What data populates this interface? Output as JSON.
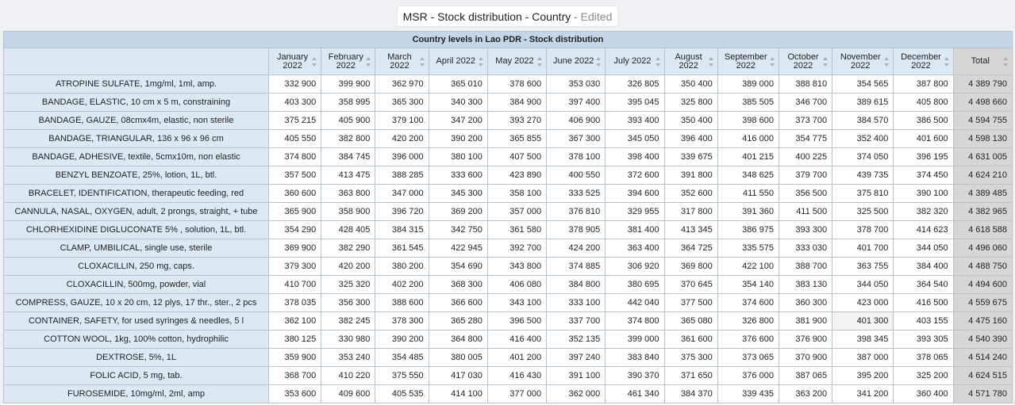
{
  "title": {
    "main": "MSR - Stock distribution - Country",
    "suffix": " - Edited"
  },
  "table": {
    "caption": "Country levels in Lao PDR - Stock distribution",
    "headers": [
      {
        "l1": "January",
        "l2": "2022"
      },
      {
        "l1": "February",
        "l2": "2022"
      },
      {
        "l1": "March",
        "l2": "2022"
      },
      {
        "l1": "April 2022",
        "l2": ""
      },
      {
        "l1": "May 2022",
        "l2": ""
      },
      {
        "l1": "June 2022",
        "l2": ""
      },
      {
        "l1": "July 2022",
        "l2": ""
      },
      {
        "l1": "August",
        "l2": "2022"
      },
      {
        "l1": "September",
        "l2": "2022"
      },
      {
        "l1": "October",
        "l2": "2022"
      },
      {
        "l1": "November",
        "l2": "2022"
      },
      {
        "l1": "December",
        "l2": "2022"
      },
      {
        "l1": "Total",
        "l2": ""
      }
    ],
    "rows": [
      {
        "label": "ATROPINE SULFATE, 1mg/ml, 1ml, amp.",
        "values": [
          "332 900",
          "399 900",
          "362 970",
          "365 010",
          "378 600",
          "353 030",
          "326 805",
          "350 400",
          "389 000",
          "388 810",
          "354 565",
          "387 800"
        ],
        "total": "4 389 790"
      },
      {
        "label": "BANDAGE, ELASTIC, 10 cm x 5 m, constraining",
        "values": [
          "403 300",
          "358 995",
          "365 300",
          "340 300",
          "384 900",
          "397 400",
          "395 045",
          "325 800",
          "385 505",
          "346 700",
          "389 615",
          "405 800"
        ],
        "total": "4 498 660"
      },
      {
        "label": "BANDAGE, GAUZE, 08cmx4m, elastic, non sterile",
        "values": [
          "375 215",
          "405 900",
          "379 100",
          "347 200",
          "393 270",
          "406 900",
          "393 400",
          "350 400",
          "398 600",
          "373 700",
          "384 570",
          "386 500"
        ],
        "total": "4 594 755"
      },
      {
        "label": "BANDAGE, TRIANGULAR, 136 x 96 x 96 cm",
        "values": [
          "405 550",
          "382 800",
          "420 200",
          "390 200",
          "365 855",
          "367 300",
          "345 050",
          "396 400",
          "416 000",
          "354 775",
          "352 400",
          "401 600"
        ],
        "total": "4 598 130"
      },
      {
        "label": "BANDAGE, ADHESIVE, textile, 5cmx10m, non elastic",
        "values": [
          "374 800",
          "384 745",
          "396 000",
          "380 100",
          "407 500",
          "378 100",
          "398 400",
          "339 675",
          "401 215",
          "400 225",
          "374 050",
          "396 195"
        ],
        "total": "4 631 005"
      },
      {
        "label": "BENZYL BENZOATE, 25%, lotion, 1L, btl.",
        "values": [
          "357 500",
          "413 475",
          "388 285",
          "333 600",
          "423 890",
          "400 550",
          "372 600",
          "391 800",
          "348 625",
          "379 700",
          "439 735",
          "374 450"
        ],
        "total": "4 624 210"
      },
      {
        "label": "BRACELET, IDENTIFICATION, therapeutic feeding, red",
        "values": [
          "360 600",
          "363 800",
          "347 000",
          "345 300",
          "358 100",
          "333 525",
          "394 600",
          "352 600",
          "411 550",
          "356 500",
          "375 810",
          "390 100"
        ],
        "total": "4 389 485"
      },
      {
        "label": "CANNULA, NASAL, OXYGEN, adult, 2 prongs, straight, + tube",
        "values": [
          "365 900",
          "358 900",
          "396 720",
          "369 200",
          "357 000",
          "376 810",
          "329 955",
          "317 800",
          "391 360",
          "411 500",
          "325 500",
          "382 320"
        ],
        "total": "4 382 965"
      },
      {
        "label": "CHLORHEXIDINE DIGLUCONATE 5% , solution, 1L, btl.",
        "values": [
          "354 290",
          "428 405",
          "384 315",
          "342 750",
          "361 580",
          "378 905",
          "381 400",
          "413 345",
          "386 975",
          "393 300",
          "378 700",
          "414 623"
        ],
        "total": "4 618 588"
      },
      {
        "label": "CLAMP, UMBILICAL, single use, sterile",
        "values": [
          "369 900",
          "382 290",
          "361 545",
          "422 945",
          "392 700",
          "424 200",
          "363 400",
          "364 725",
          "335 575",
          "333 030",
          "401 700",
          "344 050"
        ],
        "total": "4 496 060"
      },
      {
        "label": "CLOXACILLIN, 250 mg, caps.",
        "values": [
          "379 300",
          "420 200",
          "380 200",
          "354 690",
          "343 800",
          "374 885",
          "306 920",
          "369 800",
          "422 100",
          "388 700",
          "363 755",
          "384 400"
        ],
        "total": "4 488 750"
      },
      {
        "label": "CLOXACILLIN, 500mg, powder, vial",
        "values": [
          "410 700",
          "325 320",
          "402 200",
          "368 300",
          "406 080",
          "384 800",
          "380 695",
          "370 645",
          "354 140",
          "383 130",
          "344 050",
          "364 540"
        ],
        "total": "4 494 600"
      },
      {
        "label": "COMPRESS, GAUZE, 10 x 20 cm, 12 plys, 17 thr., ster., 2 pcs",
        "values": [
          "378 035",
          "356 300",
          "388 600",
          "366 600",
          "343 100",
          "333 100",
          "442 040",
          "377 500",
          "374 600",
          "360 300",
          "423 000",
          "416 500"
        ],
        "total": "4 559 675"
      },
      {
        "label": "CONTAINER, SAFETY, for used syringes & needles, 5 l",
        "values": [
          "362 100",
          "382 245",
          "378 300",
          "365 280",
          "396 500",
          "337 700",
          "374 800",
          "365 080",
          "326 800",
          "381 900",
          "401 300",
          "403 155"
        ],
        "total": "4 475 160"
      },
      {
        "label": "COTTON WOOL, 1kg, 100% cotton, hydrophilic",
        "values": [
          "380 125",
          "330 980",
          "390 200",
          "364 800",
          "416 400",
          "352 135",
          "399 000",
          "361 600",
          "376 600",
          "376 900",
          "398 345",
          "393 305"
        ],
        "total": "4 540 390"
      },
      {
        "label": "DEXTROSE, 5%, 1L",
        "values": [
          "359 900",
          "353 240",
          "354 485",
          "380 005",
          "401 200",
          "397 240",
          "383 840",
          "375 300",
          "373 065",
          "370 900",
          "387 000",
          "378 065"
        ],
        "total": "4 514 240"
      },
      {
        "label": "FOLIC ACID, 5 mg, tab.",
        "values": [
          "368 700",
          "410 220",
          "375 550",
          "417 030",
          "416 430",
          "391 100",
          "390 370",
          "371 650",
          "376 000",
          "387 065",
          "395 200",
          "325 200"
        ],
        "total": "4 624 515"
      },
      {
        "label": "FUROSEMIDE, 10mg/ml, 2ml, amp",
        "values": [
          "353 600",
          "409 600",
          "405 535",
          "414 100",
          "377 000",
          "362 000",
          "461 340",
          "384 370",
          "339 435",
          "363 200",
          "341 200",
          "360 400"
        ],
        "total": "4 571 780"
      }
    ]
  }
}
